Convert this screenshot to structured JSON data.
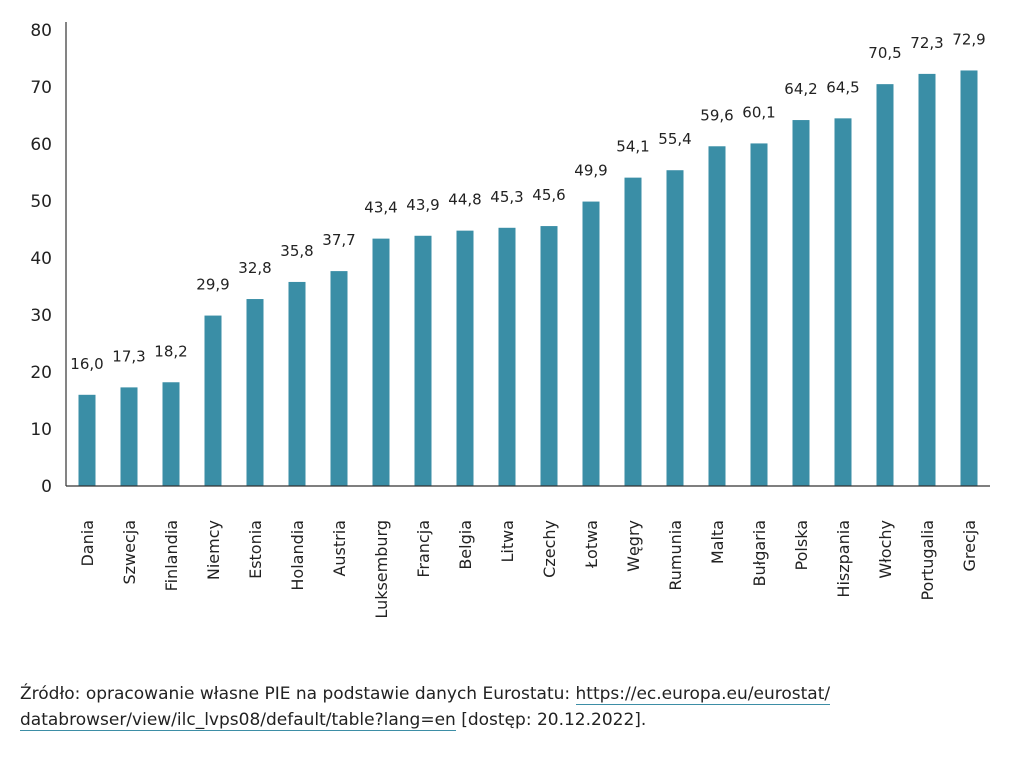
{
  "chart_data": {
    "type": "bar",
    "title": "",
    "xlabel": "",
    "ylabel": "",
    "ylim": [
      0,
      80
    ],
    "yticks": [
      "0",
      "10",
      "20",
      "30",
      "40",
      "50",
      "60",
      "70",
      "80"
    ],
    "grid": false,
    "legend": "none",
    "bar_color": "#3a8ea6",
    "categories": [
      "Dania",
      "Szwecja",
      "Finlandia",
      "Niemcy",
      "Estonia",
      "Holandia",
      "Austria",
      "Luksemburg",
      "Francja",
      "Belgia",
      "Litwa",
      "Czechy",
      "Łotwa",
      "Węgry",
      "Rumunia",
      "Malta",
      "Bułgaria",
      "Polska",
      "Hiszpania",
      "Włochy",
      "Portugalia",
      "Grecja"
    ],
    "values": [
      16.0,
      17.3,
      18.2,
      29.9,
      32.8,
      35.8,
      37.7,
      43.4,
      43.9,
      44.8,
      45.3,
      45.6,
      49.9,
      54.1,
      55.4,
      59.6,
      60.1,
      64.2,
      64.5,
      70.5,
      72.3,
      72.9
    ],
    "data_labels": [
      "16,0",
      "17,3",
      "18,2",
      "29,9",
      "32,8",
      "35,8",
      "37,7",
      "43,4",
      "43,9",
      "44,8",
      "45,3",
      "45,6",
      "49,9",
      "54,1",
      "55,4",
      "59,6",
      "60,1",
      "64,2",
      "64,5",
      "70,5",
      "72,3",
      "72,9"
    ]
  },
  "source": {
    "prefix": "Źródło: opracowanie własne PIE na podstawie danych Eurostatu: ",
    "link_part1": "https://ec.europa.eu/eurostat/",
    "link_part2": "databrowser/view/ilc_lvps08/default/table?lang=en",
    "suffix": " [dostęp: 20.12.2022]."
  }
}
